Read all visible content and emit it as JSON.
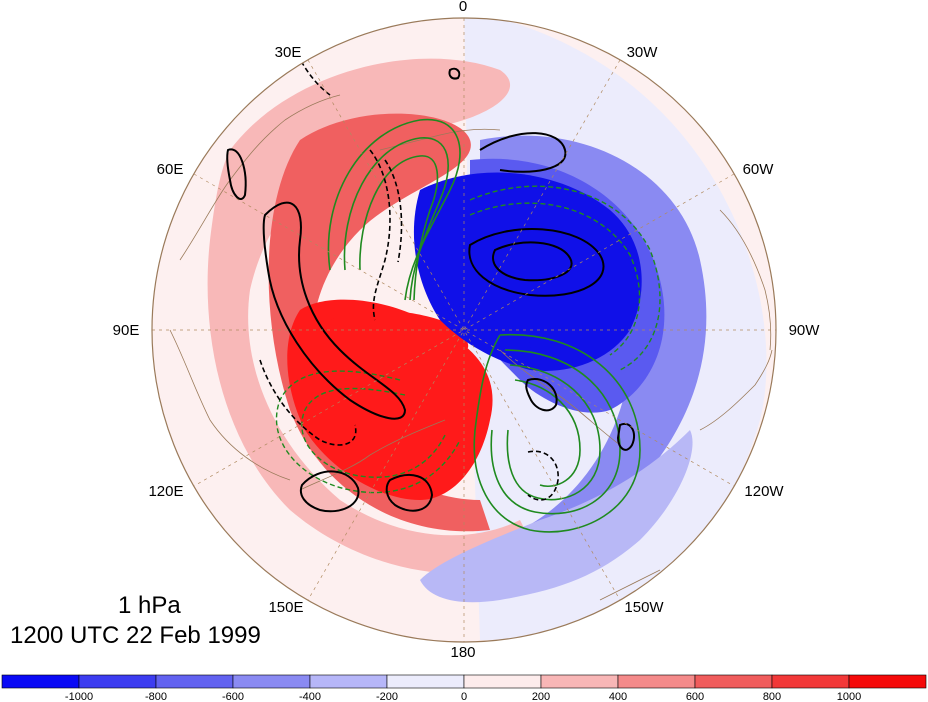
{
  "map": {
    "projection": "north polar stereographic",
    "longitude_labels": [
      "0",
      "30W",
      "60W",
      "90W",
      "120W",
      "150W",
      "180",
      "150E",
      "120E",
      "90E",
      "60E",
      "30E"
    ],
    "field_colors": {
      "strong_negative": "#1010e8",
      "negative": "#5a5af0",
      "weak_negative": "#b8b8f6",
      "near_zero_negative": "#ececfc",
      "near_zero_positive": "#fdecec",
      "weak_positive": "#f8b8b8",
      "positive": "#f06060",
      "strong_positive": "#ff1a1a"
    },
    "contour_colors": {
      "black": "#000000",
      "green": "#1f8a1f",
      "coast": "#9a7a5a",
      "graticule": "#b08a60"
    }
  },
  "title": {
    "level": "1 hPa",
    "date": "1200 UTC 22 Feb 1999"
  },
  "colorbar": {
    "tick_labels": [
      "-1000",
      "-800",
      "-600",
      "-400",
      "-200",
      "0",
      "200",
      "400",
      "600",
      "800",
      "1000"
    ],
    "bin_colors": [
      "#0a0af5",
      "#3c3cf0",
      "#6262f0",
      "#8a8af2",
      "#b6b6f8",
      "#ececfc",
      "#fdecec",
      "#f8b6b6",
      "#f48a8a",
      "#f05c5c",
      "#f23838",
      "#f50a0a"
    ]
  }
}
